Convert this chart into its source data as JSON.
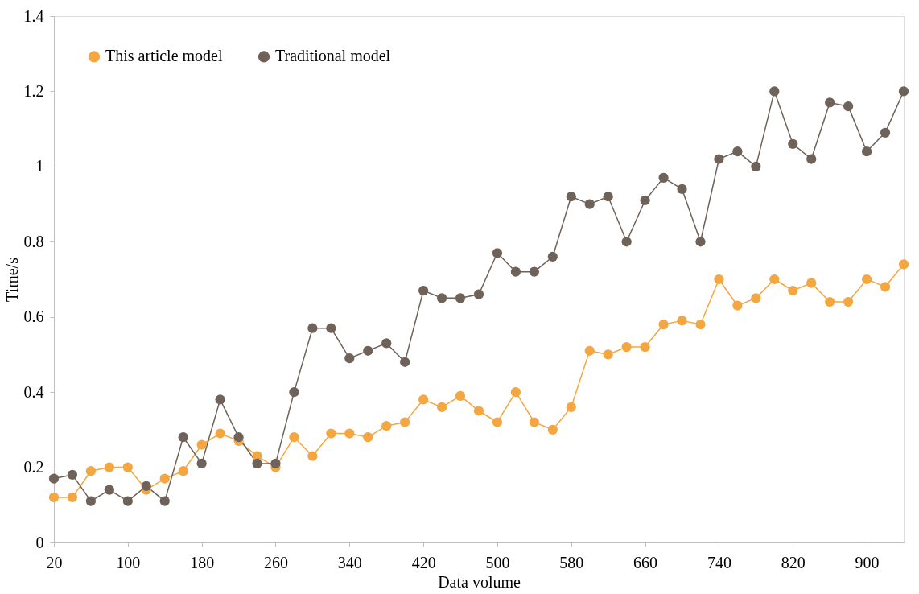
{
  "chart_data": {
    "type": "line",
    "xlabel": "Data volume",
    "ylabel": "Time/s",
    "x": [
      20,
      40,
      60,
      80,
      100,
      120,
      140,
      160,
      180,
      200,
      220,
      240,
      260,
      280,
      300,
      320,
      340,
      360,
      380,
      400,
      420,
      440,
      460,
      480,
      500,
      520,
      540,
      560,
      580,
      600,
      620,
      640,
      660,
      680,
      700,
      720,
      740,
      760,
      780,
      800,
      820,
      840,
      860,
      880,
      900,
      920,
      940
    ],
    "xlim": [
      20,
      940
    ],
    "xticks": [
      20,
      100,
      180,
      260,
      340,
      420,
      500,
      580,
      660,
      740,
      820,
      900
    ],
    "ylim": [
      0,
      1.4
    ],
    "yticks": [
      0,
      0.2,
      0.4,
      0.6,
      0.8,
      1,
      1.2,
      1.4
    ],
    "grid": false,
    "legend": "top left",
    "marker": "circle",
    "line_style": "solid",
    "series": [
      {
        "name": "This article model",
        "color": "#f4a641",
        "values": [
          0.12,
          0.12,
          0.19,
          0.2,
          0.2,
          0.14,
          0.17,
          0.19,
          0.26,
          0.29,
          0.27,
          0.23,
          0.2,
          0.28,
          0.23,
          0.29,
          0.29,
          0.28,
          0.31,
          0.32,
          0.38,
          0.36,
          0.39,
          0.35,
          0.32,
          0.4,
          0.32,
          0.3,
          0.36,
          0.51,
          0.5,
          0.52,
          0.52,
          0.58,
          0.59,
          0.58,
          0.7,
          0.63,
          0.65,
          0.7,
          0.67,
          0.69,
          0.64,
          0.64,
          0.7,
          0.68,
          0.74
        ]
      },
      {
        "name": "Traditional model",
        "color": "#6e6259",
        "values": [
          0.17,
          0.18,
          0.11,
          0.14,
          0.11,
          0.15,
          0.11,
          0.28,
          0.21,
          0.38,
          0.28,
          0.21,
          0.21,
          0.4,
          0.57,
          0.57,
          0.49,
          0.51,
          0.53,
          0.48,
          0.67,
          0.65,
          0.65,
          0.66,
          0.77,
          0.72,
          0.72,
          0.76,
          0.92,
          0.9,
          0.92,
          0.8,
          0.91,
          0.97,
          0.94,
          0.8,
          1.02,
          1.04,
          1.0,
          1.2,
          1.06,
          1.02,
          1.17,
          1.16,
          1.04,
          1.09,
          1.2
        ]
      }
    ]
  }
}
